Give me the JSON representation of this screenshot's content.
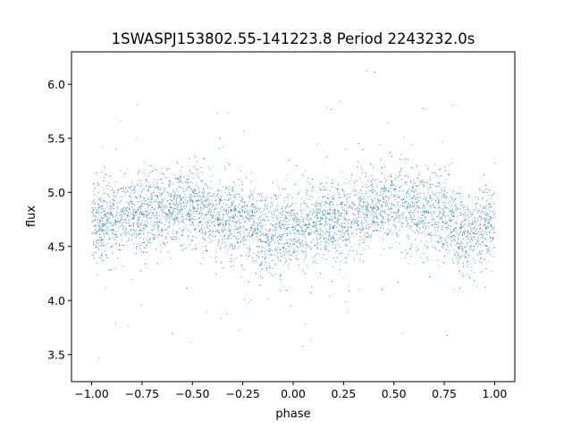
{
  "chart_data": {
    "type": "scatter",
    "title": "1SWASPJ153802.55-141223.8 Period 2243232.0s",
    "xlabel": "phase",
    "ylabel": "flux",
    "xlim": [
      -1.1,
      1.1
    ],
    "ylim": [
      3.25,
      6.3
    ],
    "xticks": [
      -1.0,
      -0.75,
      -0.5,
      -0.25,
      0.0,
      0.25,
      0.5,
      0.75,
      1.0
    ],
    "xtick_labels": [
      "−1.00",
      "−0.75",
      "−0.50",
      "−0.25",
      "0.00",
      "0.25",
      "0.50",
      "0.75",
      "1.00"
    ],
    "yticks": [
      3.5,
      4.0,
      4.5,
      5.0,
      5.5,
      6.0
    ],
    "ytick_labels": [
      "3.5",
      "4.0",
      "4.5",
      "5.0",
      "5.5",
      "6.0"
    ],
    "grid": false,
    "legend": "none",
    "marker_color": "#1f77b4",
    "marker": "small dots",
    "series": [
      {
        "x_range": [
          -1.0,
          1.0
        ],
        "mean_flux_by_phase": {
          "x": [
            -1.0,
            -0.9,
            -0.8,
            -0.7,
            -0.6,
            -0.5,
            -0.4,
            -0.3,
            -0.2,
            -0.15,
            -0.1,
            0.0,
            0.1,
            0.2,
            0.3,
            0.4,
            0.5,
            0.6,
            0.7,
            0.8,
            0.85,
            0.9,
            1.0
          ],
          "y": [
            4.7,
            4.75,
            4.8,
            4.85,
            4.87,
            4.85,
            4.8,
            4.75,
            4.7,
            4.6,
            4.65,
            4.65,
            4.7,
            4.75,
            4.8,
            4.85,
            4.87,
            4.85,
            4.8,
            4.7,
            4.6,
            4.65,
            4.7
          ]
        },
        "typical_scatter_sigma": 0.18,
        "outlier_range": [
          3.4,
          6.15
        ]
      }
    ]
  }
}
